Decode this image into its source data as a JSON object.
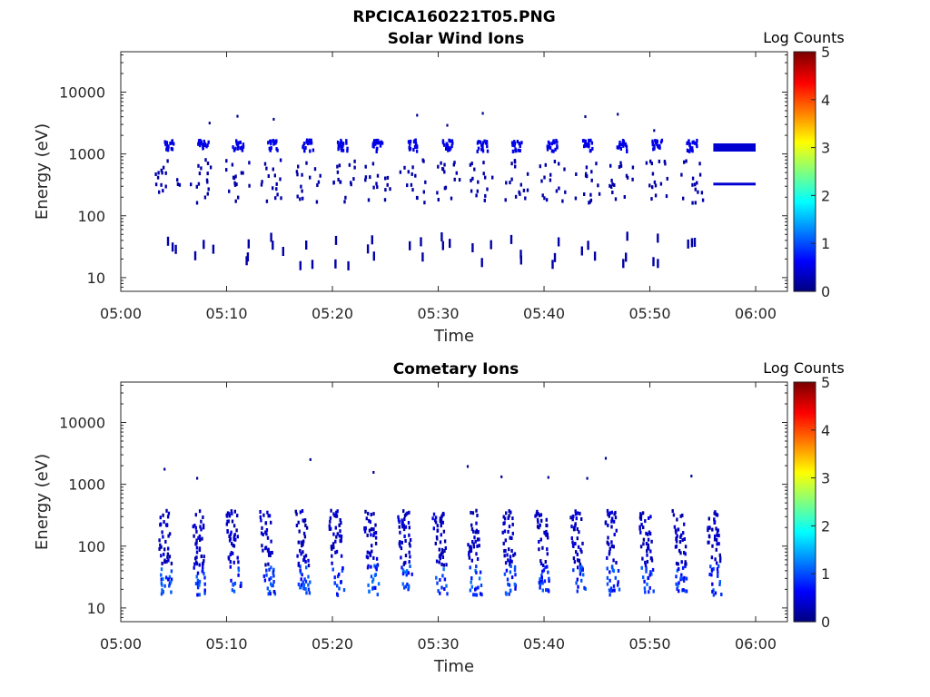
{
  "figure_title": "RPCICA160221T05.PNG",
  "chart_data": [
    {
      "type": "heatmap",
      "title": "Solar Wind Ions",
      "xlabel": "Time",
      "ylabel": "Energy (eV)",
      "x_ticks": [
        "05:00",
        "05:10",
        "05:20",
        "05:30",
        "05:40",
        "05:50",
        "06:00"
      ],
      "x_range_minutes": [
        0,
        63
      ],
      "y_scale": "log",
      "y_ticks": [
        "10",
        "100",
        "1000",
        "10000"
      ],
      "y_range": [
        6,
        45000
      ],
      "colorbar": {
        "label": "Log Counts",
        "range": [
          0,
          5
        ],
        "ticks": [
          "0",
          "1",
          "2",
          "3",
          "4",
          "5"
        ],
        "colormap": "jet"
      },
      "sweep_times_minutes": [
        4.4,
        7.7,
        11.0,
        14.3,
        17.6,
        20.9,
        24.2,
        27.5,
        30.8,
        34.1,
        37.4,
        40.7,
        44.0,
        47.3,
        50.6,
        53.9
      ],
      "sweep_peak_energy_ev": 1200,
      "sweep_peak_log_counts": 0.5,
      "continuous_band": {
        "start_minutes": 56.0,
        "end_minutes": 60.0,
        "energies_ev": [
          1250,
          320
        ],
        "log_counts": 0.4
      }
    },
    {
      "type": "heatmap",
      "title": "Cometary Ions",
      "xlabel": "Time",
      "ylabel": "Energy (eV)",
      "x_ticks": [
        "05:00",
        "05:10",
        "05:20",
        "05:30",
        "05:40",
        "05:50",
        "06:00"
      ],
      "x_range_minutes": [
        0,
        63
      ],
      "y_scale": "log",
      "y_ticks": [
        "10",
        "100",
        "1000",
        "10000"
      ],
      "y_range": [
        6,
        45000
      ],
      "colorbar": {
        "label": "Log Counts",
        "range": [
          0,
          5
        ],
        "ticks": [
          "0",
          "1",
          "2",
          "3",
          "4",
          "5"
        ],
        "colormap": "jet"
      },
      "sweep_times_minutes": [
        4.3,
        7.5,
        10.8,
        14.0,
        17.3,
        20.5,
        23.8,
        27.0,
        30.3,
        33.5,
        36.8,
        40.0,
        43.3,
        46.5,
        49.8,
        53.0,
        56.2
      ],
      "sweep_energy_range_ev": [
        15,
        350
      ],
      "sweep_peak_log_counts": 1.2
    }
  ],
  "colors": {
    "axis": "#262626",
    "background": "#ffffff"
  }
}
